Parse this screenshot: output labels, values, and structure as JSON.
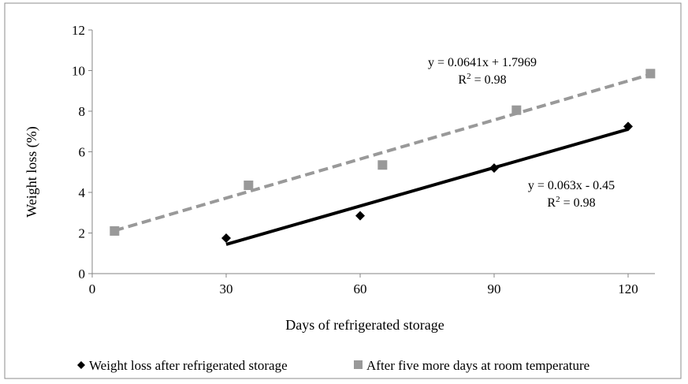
{
  "chart_data": {
    "type": "scatter",
    "xlabel": "Days of refrigerated storage",
    "ylabel": "Weight loss (%)",
    "xlim": [
      0,
      126
    ],
    "ylim": [
      0,
      12
    ],
    "xticks": [
      0,
      30,
      60,
      90,
      120
    ],
    "yticks": [
      0,
      2,
      4,
      6,
      8,
      10,
      12
    ],
    "grid": false,
    "legend_position": "bottom",
    "series": [
      {
        "name": "Weight loss after refrigerated storage",
        "marker": "diamond",
        "color": "#000000",
        "x": [
          30,
          60,
          90,
          120
        ],
        "y": [
          1.75,
          2.85,
          5.2,
          7.25
        ],
        "trendline": {
          "slope": 0.063,
          "intercept": -0.45,
          "style": "solid",
          "color": "#000000"
        },
        "equation": "y = 0.063x - 0.45",
        "r2_label": "R",
        "r2_value": " = 0.98"
      },
      {
        "name": "After five more days at room temperature",
        "marker": "square",
        "color": "#999999",
        "x": [
          5,
          35,
          65,
          95,
          125
        ],
        "y": [
          2.1,
          4.35,
          5.35,
          8.05,
          9.85
        ],
        "trendline": {
          "slope": 0.0641,
          "intercept": 1.7969,
          "style": "dashed",
          "color": "#999999"
        },
        "equation": "y = 0.0641x + 1.7969",
        "r2_label": "R",
        "r2_value": " = 0.98"
      }
    ]
  }
}
